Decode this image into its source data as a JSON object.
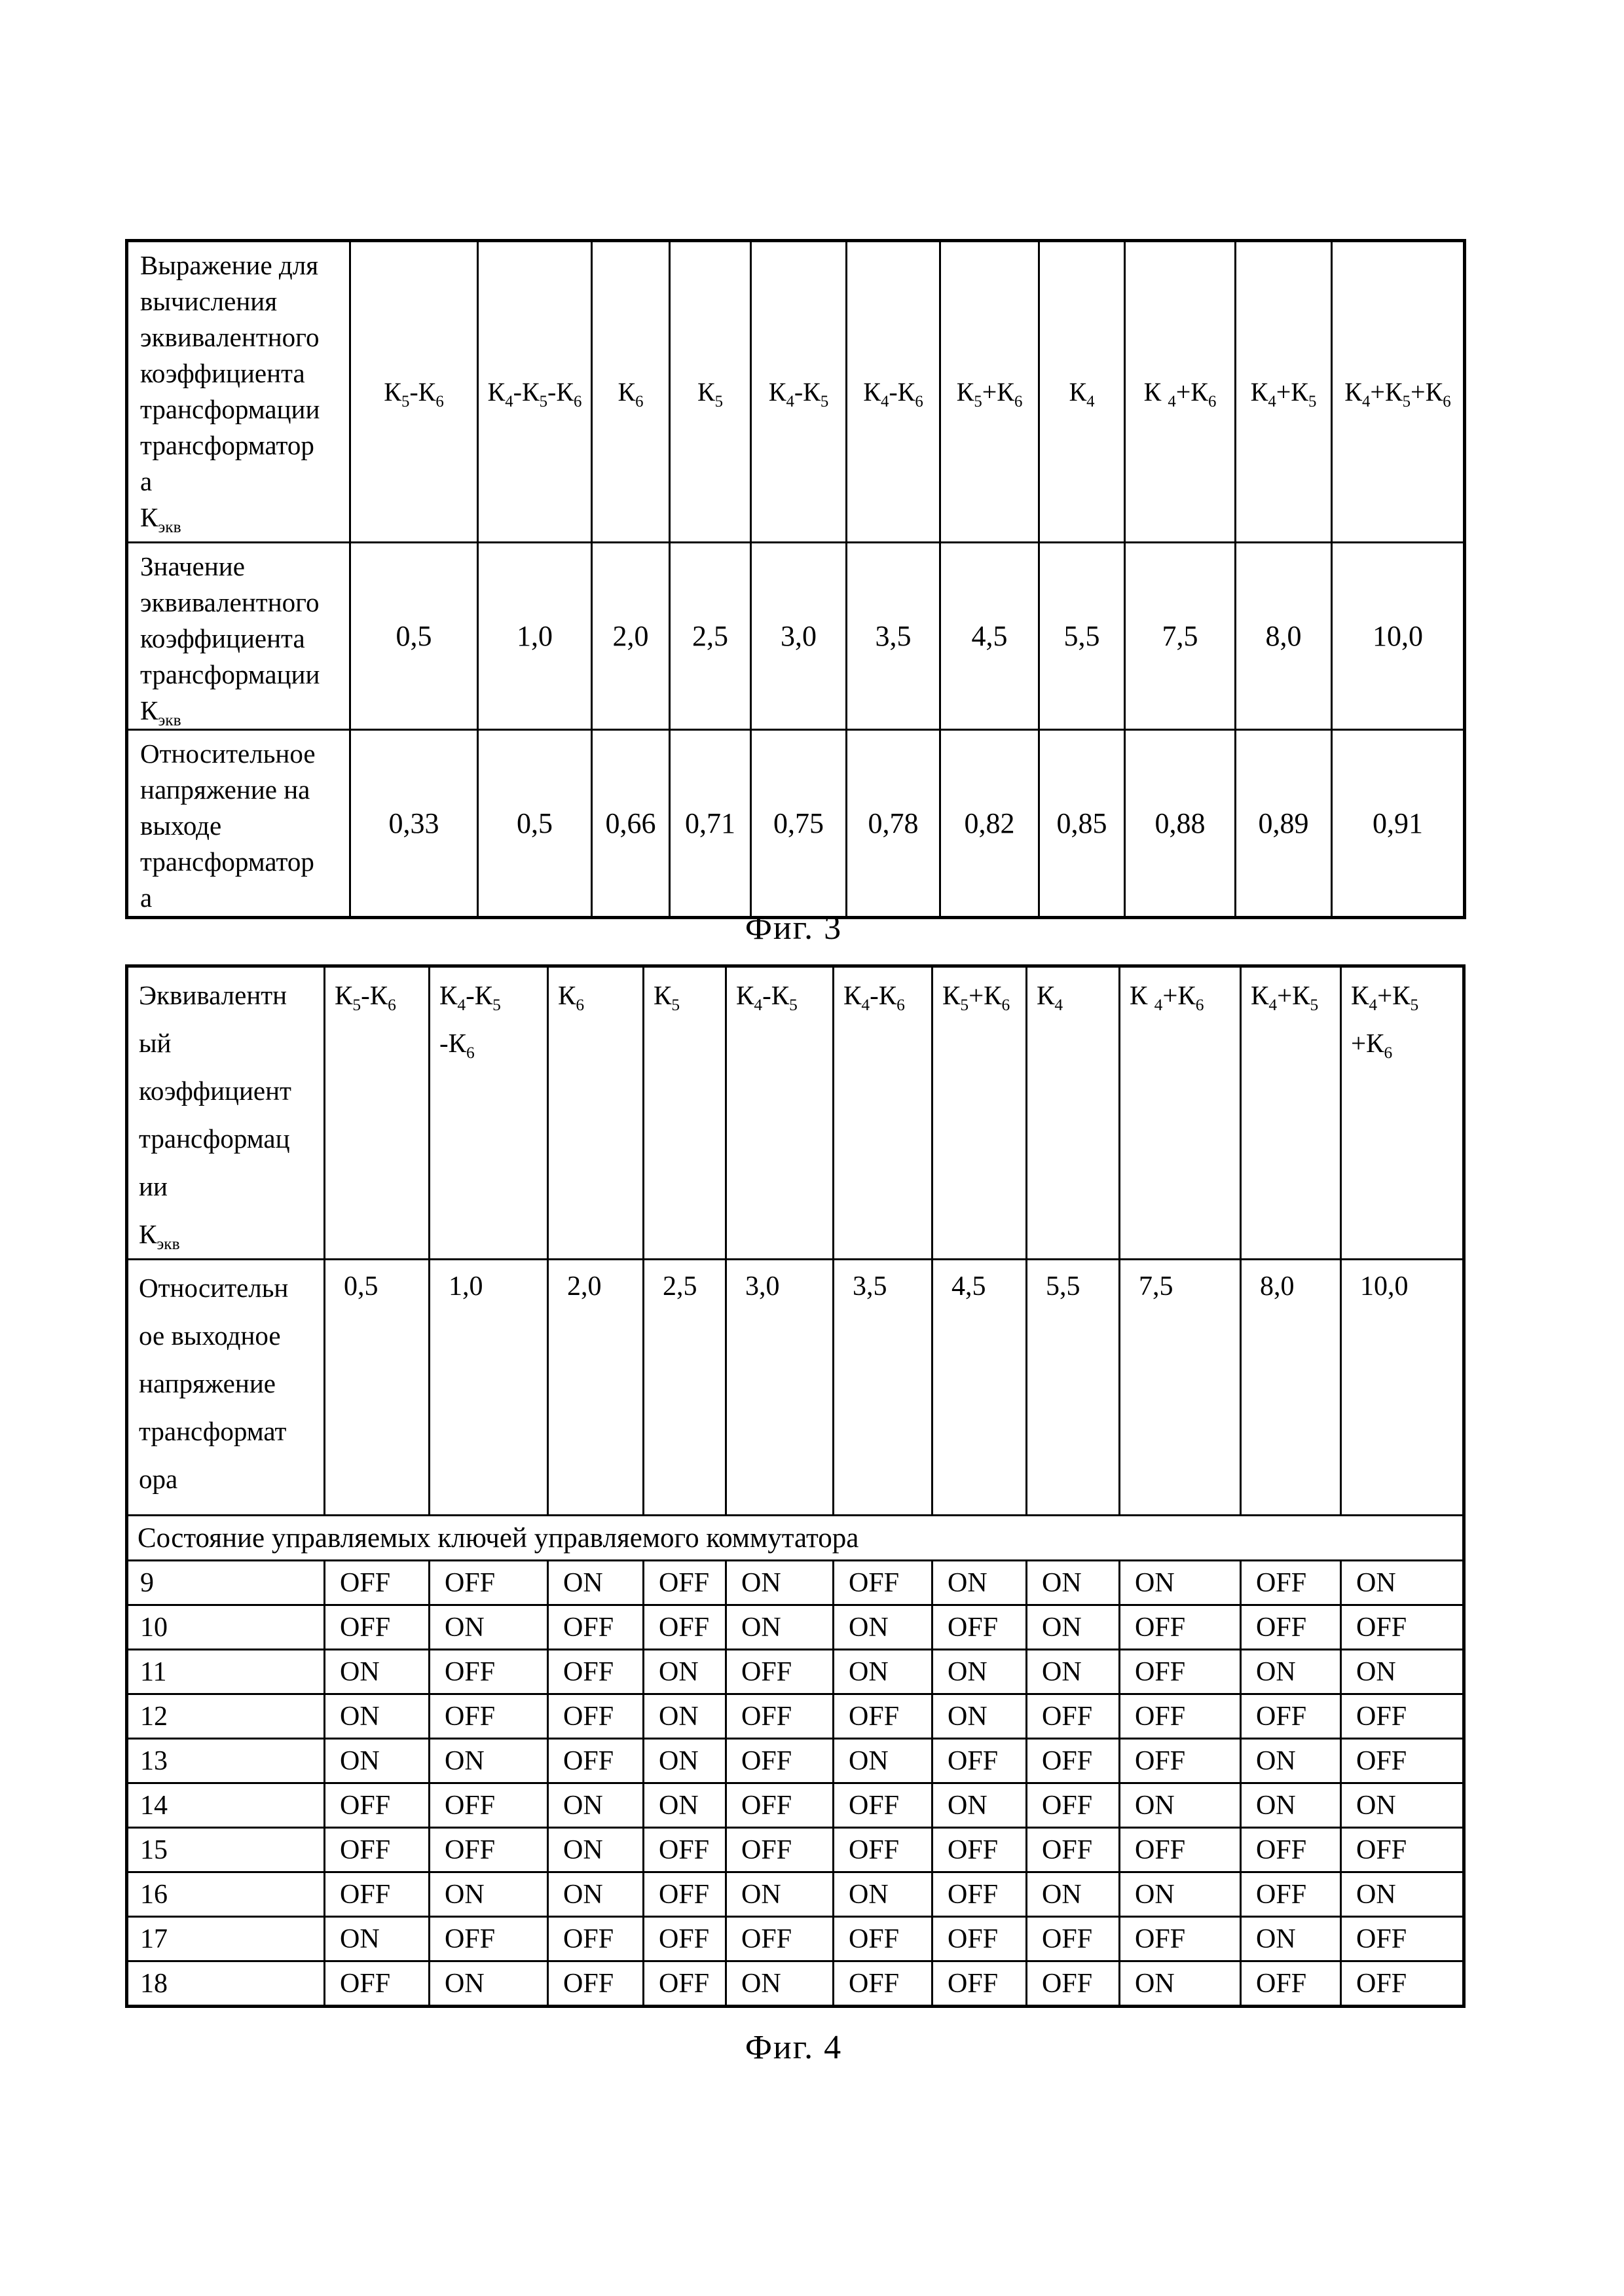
{
  "colors": {
    "ink": "#000000",
    "paper": "#ffffff"
  },
  "fig3": {
    "caption": "Фиг. 3",
    "header_label_lines": [
      "Выражение для",
      "вычисления",
      "эквивалентного",
      "коэффициента",
      "трансформации",
      "трансформатор",
      "а",
      "К~экв~"
    ],
    "columns": [
      "К~5~-К~6~",
      "К~4~-К~5~-К~6~",
      "К~6~",
      "К~5~",
      "К~4~-К~5~",
      "К~4~-К~6~",
      "К~5~+К~6~",
      "К~4~",
      "К ~4~+К~6~",
      "К~4~+К~5~",
      "К~4~+К~5~+К~6~"
    ],
    "data_rows": [
      {
        "label_lines": [
          "Значение",
          "эквивалентного",
          "коэффициента",
          "трансформации",
          "К~экв~"
        ],
        "values": [
          "0,5",
          "1,0",
          "2,0",
          "2,5",
          "3,0",
          "3,5",
          "4,5",
          "5,5",
          "7,5",
          "8,0",
          "10,0"
        ]
      },
      {
        "label_lines": [
          "Относительное",
          "напряжение на",
          "выходе",
          "трансформатор",
          "а"
        ],
        "values": [
          "0,33",
          "0,5",
          "0,66",
          "0,71",
          "0,75",
          "0,78",
          "0,82",
          "0,85",
          "0,88",
          "0,89",
          "0,91"
        ]
      }
    ]
  },
  "fig4": {
    "caption": "Фиг. 4",
    "header_label_lines": [
      "Эквивалентн",
      "ый",
      "коэффициент",
      "трансформац",
      "ии",
      "К~экв~"
    ],
    "columns": [
      [
        "К~5~-К~6~"
      ],
      [
        "К~4~-К~5~",
        "-К~6~"
      ],
      [
        "К~6~"
      ],
      [
        "К~5~"
      ],
      [
        "К~4~-К~5~"
      ],
      [
        "К~4~-К~6~"
      ],
      [
        "К~5~+К~6~"
      ],
      [
        "К~4~"
      ],
      [
        "К ~4~+К~6~"
      ],
      [
        "К~4~+К~5~"
      ],
      [
        "К~4~+К~5~",
        "+К~6~"
      ]
    ],
    "voltage_row": {
      "label_lines": [
        "Относительн",
        "ое выходное",
        "напряжение",
        "трансформат",
        "ора"
      ],
      "values": [
        "0,5",
        "1,0",
        "2,0",
        "2,5",
        "3,0",
        "3,5",
        "4,5",
        "5,5",
        "7,5",
        "8,0",
        "10,0"
      ]
    },
    "section_header": "Состояние управляемых ключей управляемого коммутатора",
    "switch_rows": [
      {
        "id": "9",
        "states": [
          "OFF",
          "OFF",
          "ON",
          "OFF",
          "ON",
          "OFF",
          "ON",
          "ON",
          "ON",
          "OFF",
          "ON"
        ]
      },
      {
        "id": "10",
        "states": [
          "OFF",
          "ON",
          "OFF",
          "OFF",
          "ON",
          "ON",
          "OFF",
          "ON",
          "OFF",
          "OFF",
          "OFF"
        ]
      },
      {
        "id": "11",
        "states": [
          "ON",
          "OFF",
          "OFF",
          "ON",
          "OFF",
          "ON",
          "ON",
          "ON",
          "OFF",
          "ON",
          "ON"
        ]
      },
      {
        "id": "12",
        "states": [
          "ON",
          "OFF",
          "OFF",
          "ON",
          "OFF",
          "OFF",
          "ON",
          "OFF",
          "OFF",
          "OFF",
          "OFF"
        ]
      },
      {
        "id": "13",
        "states": [
          "ON",
          "ON",
          "OFF",
          "ON",
          "OFF",
          "ON",
          "OFF",
          "OFF",
          "OFF",
          "ON",
          "OFF"
        ]
      },
      {
        "id": "14",
        "states": [
          "OFF",
          "OFF",
          "ON",
          "ON",
          "OFF",
          "OFF",
          "ON",
          "OFF",
          "ON",
          "ON",
          "ON"
        ]
      },
      {
        "id": "15",
        "states": [
          "OFF",
          "OFF",
          "ON",
          "OFF",
          "OFF",
          "OFF",
          "OFF",
          "OFF",
          "OFF",
          "OFF",
          "OFF"
        ]
      },
      {
        "id": "16",
        "states": [
          "OFF",
          "ON",
          "ON",
          "OFF",
          "ON",
          "ON",
          "OFF",
          "ON",
          "ON",
          "OFF",
          "ON"
        ]
      },
      {
        "id": "17",
        "states": [
          "ON",
          "OFF",
          "OFF",
          "OFF",
          "OFF",
          "OFF",
          "OFF",
          "OFF",
          "OFF",
          "ON",
          "OFF"
        ]
      },
      {
        "id": "18",
        "states": [
          "OFF",
          "ON",
          "OFF",
          "OFF",
          "ON",
          "OFF",
          "OFF",
          "OFF",
          "ON",
          "OFF",
          "OFF"
        ]
      }
    ]
  }
}
